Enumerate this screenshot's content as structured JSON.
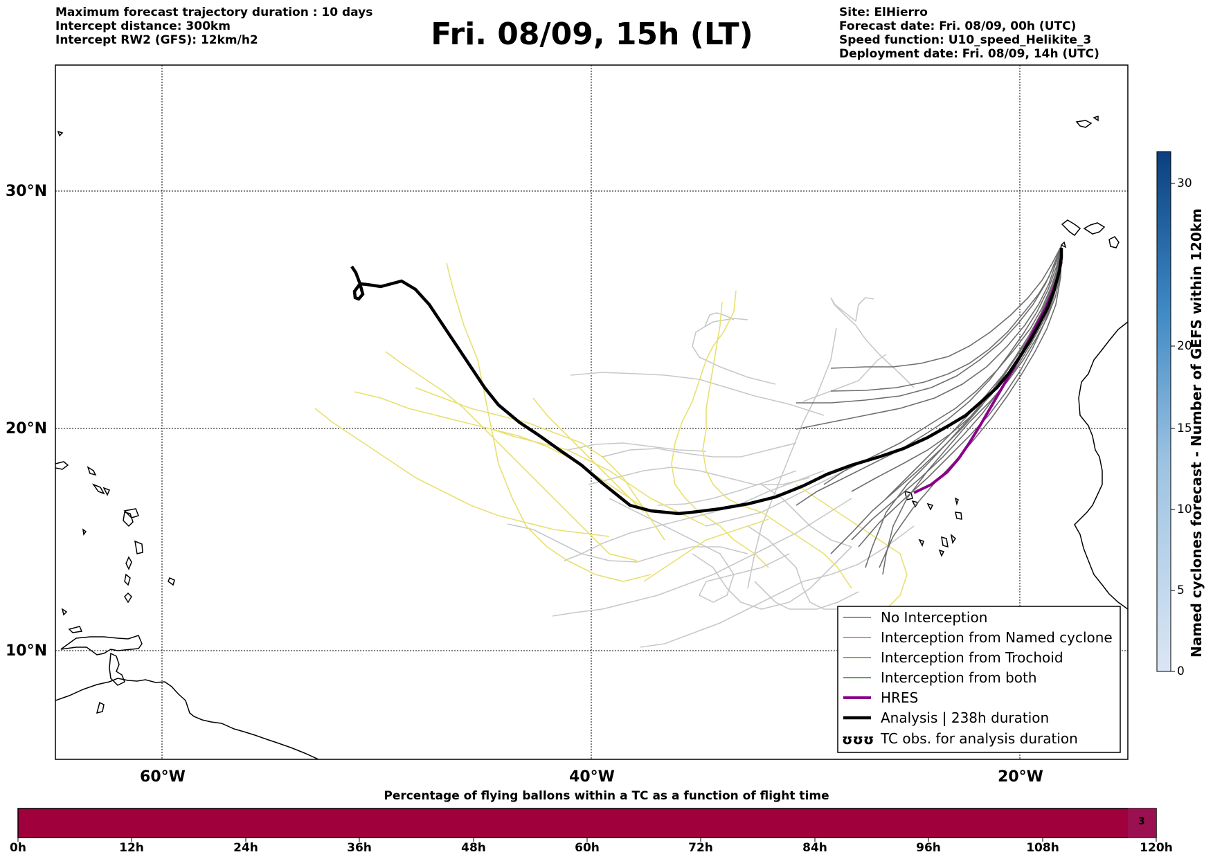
{
  "header": {
    "left": [
      "Maximum forecast trajectory duration : 10 days",
      "Intercept distance: 300km",
      "Intercept RW2 (GFS):  12km/h2"
    ],
    "title": "Fri. 08/09, 15h (LT)",
    "right": [
      "Site: ElHierro",
      "Forecast date: Fri. 08/09, 00h (UTC)",
      "Speed function: U10_speed_Helikite_3",
      "Deployment date: Fri. 08/09, 14h (UTC)"
    ]
  },
  "map": {
    "lat_labels": [
      "30°N",
      "20°N",
      "10°N"
    ],
    "lon_labels": [
      "60°W",
      "40°W",
      "20°W"
    ],
    "colors": {
      "no_interception": "#6e6e6e",
      "named_cyclone": "#e8692a",
      "trochoid": "#808020",
      "both": "#2a8a2a",
      "hres": "#8b008b",
      "analysis": "#000000",
      "ensemble_light": "#c8c8c8",
      "ensemble_yellow": "#e8e070"
    }
  },
  "legend": {
    "items": [
      {
        "label": "No Interception",
        "color": "#6e6e6e"
      },
      {
        "label": "Interception from Named cyclone",
        "color": "#e8692a"
      },
      {
        "label": "Interception from Trochoid",
        "color": "#808020"
      },
      {
        "label": "Interception from both",
        "color": "#2a8a2a"
      },
      {
        "label": "HRES",
        "color": "#8b008b"
      },
      {
        "label": "Analysis | 238h duration",
        "color": "#000000"
      },
      {
        "label": "TC obs. for analysis duration",
        "icon": "tc-symbol-icon"
      }
    ]
  },
  "colorbar": {
    "title": "Named cyclones forecast - Number of GEFS within 120km",
    "ticks": [
      "0",
      "5",
      "10",
      "15",
      "20",
      "30"
    ]
  },
  "bottom_bar": {
    "title": "Percentage of flying ballons within a TC as a function of flight time",
    "ticks": [
      "0h",
      "12h",
      "24h",
      "36h",
      "48h",
      "60h",
      "72h",
      "84h",
      "96h",
      "108h",
      "120h"
    ],
    "cell_label": "3",
    "color": "#a0003c"
  }
}
